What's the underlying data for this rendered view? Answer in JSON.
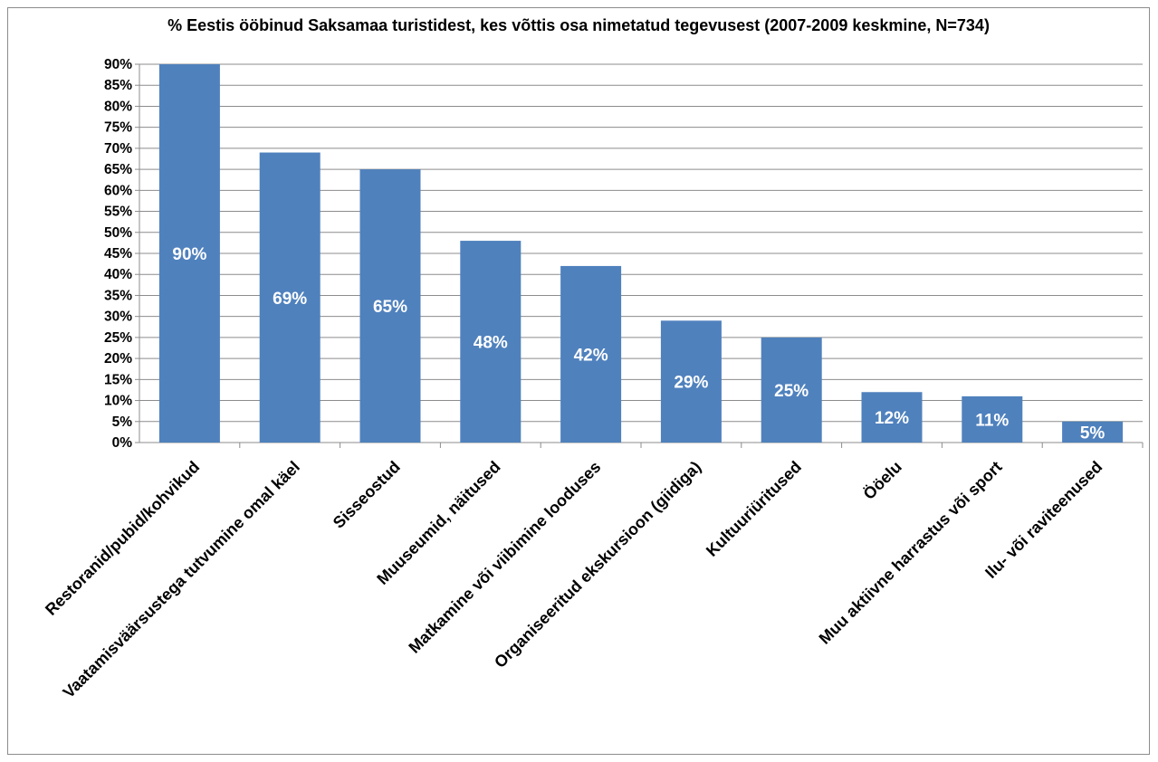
{
  "chart_data": {
    "type": "bar",
    "title": "% Eestis ööbinud Saksamaa turistidest, kes võttis osa nimetatud tegevusest (2007-2009 keskmine, N=734)",
    "categories": [
      "Restoranid/pubid/kohvikud",
      "Vaatamisväärsustega tutvumine omal käel",
      "Sisseostud",
      "Muuseumid, näitused",
      "Matkamine või viibimine looduses",
      "Organiseeritud ekskursioon (giidiga)",
      "Kultuuriüritused",
      "Ööelu",
      "Muu aktiivne harrastus või sport",
      "Ilu- või raviteenused"
    ],
    "values": [
      90,
      69,
      65,
      48,
      42,
      29,
      25,
      12,
      11,
      5
    ],
    "data_labels": [
      "90%",
      "69%",
      "65%",
      "48%",
      "42%",
      "29%",
      "25%",
      "12%",
      "11%",
      "5%"
    ],
    "ylim": [
      0,
      90
    ],
    "y_ticks": [
      "0%",
      "5%",
      "10%",
      "15%",
      "20%",
      "25%",
      "30%",
      "35%",
      "40%",
      "45%",
      "50%",
      "55%",
      "60%",
      "65%",
      "70%",
      "75%",
      "80%",
      "85%",
      "90%"
    ],
    "ylabel": "",
    "xlabel": "",
    "grid": true,
    "legend": "none",
    "colors": {
      "bar": "#4f81bd",
      "grid": "#8c8c8c",
      "axis": "#8c8c8c"
    }
  }
}
